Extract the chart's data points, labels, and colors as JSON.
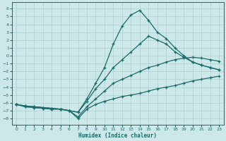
{
  "xlabel": "Humidex (Indice chaleur)",
  "bg_color": "#cce8e8",
  "line_color": "#1a6b6b",
  "grid_color": "#aacfcf",
  "xlim": [
    -0.5,
    23.5
  ],
  "ylim": [
    -8.8,
    6.8
  ],
  "xticks": [
    0,
    1,
    2,
    3,
    4,
    5,
    6,
    7,
    8,
    9,
    10,
    11,
    12,
    13,
    14,
    15,
    16,
    17,
    18,
    19,
    20,
    21,
    22,
    23
  ],
  "yticks": [
    -8,
    -7,
    -6,
    -5,
    -4,
    -3,
    -2,
    -1,
    0,
    1,
    2,
    3,
    4,
    5,
    6
  ],
  "lines": [
    {
      "x": [
        0,
        1,
        2,
        3,
        4,
        5,
        6,
        7,
        8,
        9,
        10,
        11,
        12,
        13,
        14,
        15,
        16,
        17,
        18,
        19,
        20,
        21,
        22,
        23
      ],
      "y": [
        -6.2,
        -6.5,
        -6.6,
        -6.7,
        -6.8,
        -6.8,
        -7.0,
        -7.2,
        -5.5,
        -3.5,
        -1.5,
        1.5,
        3.8,
        5.2,
        5.8,
        4.5,
        3.0,
        2.2,
        1.0,
        0.0,
        -0.8,
        -1.2,
        -1.5,
        -1.8
      ]
    },
    {
      "x": [
        0,
        1,
        2,
        3,
        4,
        5,
        6,
        7,
        8,
        9,
        10,
        11,
        12,
        13,
        14,
        15,
        16,
        17,
        18,
        19,
        20,
        21,
        22,
        23
      ],
      "y": [
        -6.2,
        -6.5,
        -6.6,
        -6.7,
        -6.8,
        -6.8,
        -7.0,
        -7.2,
        -5.8,
        -4.2,
        -3.0,
        -1.5,
        -0.5,
        0.5,
        1.5,
        2.5,
        2.0,
        1.5,
        0.5,
        -0.2,
        -0.8,
        -1.2,
        -1.5,
        -1.8
      ]
    },
    {
      "x": [
        0,
        1,
        2,
        3,
        4,
        5,
        6,
        7,
        8,
        9,
        10,
        11,
        12,
        13,
        14,
        15,
        16,
        17,
        18,
        19,
        20,
        21,
        22,
        23
      ],
      "y": [
        -6.2,
        -6.4,
        -6.5,
        -6.6,
        -6.7,
        -6.8,
        -7.0,
        -7.8,
        -6.5,
        -5.5,
        -4.5,
        -3.5,
        -3.0,
        -2.5,
        -2.0,
        -1.5,
        -1.2,
        -0.8,
        -0.5,
        -0.3,
        -0.2,
        -0.3,
        -0.5,
        -0.7
      ]
    },
    {
      "x": [
        0,
        1,
        2,
        3,
        4,
        5,
        6,
        7,
        8,
        9,
        10,
        11,
        12,
        13,
        14,
        15,
        16,
        17,
        18,
        19,
        20,
        21,
        22,
        23
      ],
      "y": [
        -6.2,
        -6.4,
        -6.5,
        -6.6,
        -6.7,
        -6.8,
        -7.0,
        -8.0,
        -6.8,
        -6.2,
        -5.8,
        -5.5,
        -5.2,
        -5.0,
        -4.8,
        -4.5,
        -4.2,
        -4.0,
        -3.8,
        -3.5,
        -3.2,
        -3.0,
        -2.8,
        -2.6
      ]
    }
  ]
}
